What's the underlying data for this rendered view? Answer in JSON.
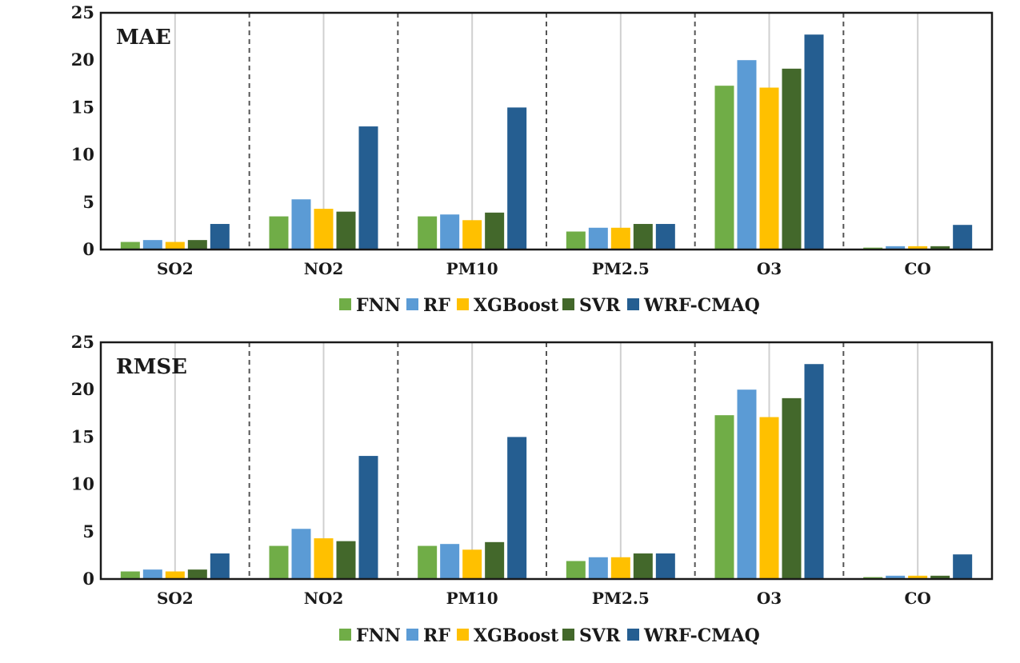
{
  "chart_data": [
    {
      "type": "bar",
      "title": "MAE",
      "categories": [
        "SO2",
        "NO2",
        "PM10",
        "PM2.5",
        "O3",
        "CO"
      ],
      "ylim": [
        0,
        25
      ],
      "yticks": [
        0,
        5,
        10,
        15,
        20,
        25
      ],
      "series": [
        {
          "name": "FNN",
          "color": "#70ad47",
          "values": [
            0.8,
            3.5,
            3.5,
            1.9,
            17.3,
            0.2
          ]
        },
        {
          "name": "RF",
          "color": "#5b9bd5",
          "values": [
            1.0,
            5.3,
            3.7,
            2.3,
            20.0,
            0.35
          ]
        },
        {
          "name": "XGBoost",
          "color": "#ffc000",
          "values": [
            0.8,
            4.3,
            3.1,
            2.3,
            17.1,
            0.35
          ]
        },
        {
          "name": "SVR",
          "color": "#43682b",
          "values": [
            1.0,
            4.0,
            3.9,
            2.7,
            19.1,
            0.35
          ]
        },
        {
          "name": "WRF-CMAQ",
          "color": "#255e91",
          "values": [
            2.7,
            13.0,
            15.0,
            2.7,
            22.7,
            2.6
          ]
        }
      ],
      "legend": "bottom-center",
      "grid": false
    },
    {
      "type": "bar",
      "title": "RMSE",
      "categories": [
        "SO2",
        "NO2",
        "PM10",
        "PM2.5",
        "O3",
        "CO"
      ],
      "ylim": [
        0,
        25
      ],
      "yticks": [
        0,
        5,
        10,
        15,
        20,
        25
      ],
      "series": [
        {
          "name": "FNN",
          "color": "#70ad47",
          "values": [
            0.8,
            3.5,
            3.5,
            1.9,
            17.3,
            0.2
          ]
        },
        {
          "name": "RF",
          "color": "#5b9bd5",
          "values": [
            1.0,
            5.3,
            3.7,
            2.3,
            20.0,
            0.35
          ]
        },
        {
          "name": "XGBoost",
          "color": "#ffc000",
          "values": [
            0.8,
            4.3,
            3.1,
            2.3,
            17.1,
            0.35
          ]
        },
        {
          "name": "SVR",
          "color": "#43682b",
          "values": [
            1.0,
            4.0,
            3.9,
            2.7,
            19.1,
            0.35
          ]
        },
        {
          "name": "WRF-CMAQ",
          "color": "#255e91",
          "values": [
            2.7,
            13.0,
            15.0,
            2.7,
            22.7,
            2.6
          ]
        }
      ],
      "legend": "bottom-center",
      "grid": false
    }
  ]
}
